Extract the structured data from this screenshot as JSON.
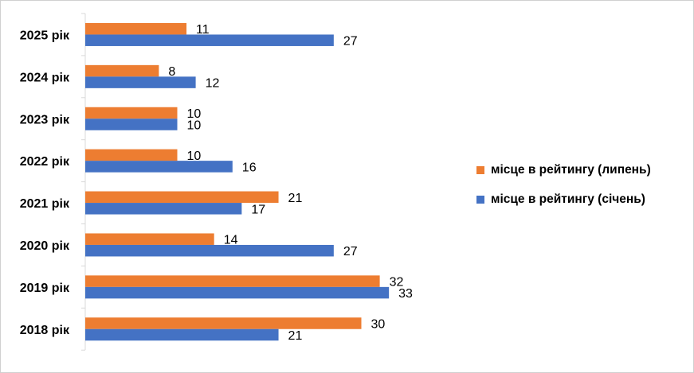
{
  "chart_data": {
    "type": "bar",
    "orientation": "horizontal",
    "categories": [
      "2025 рік",
      "2024 рік",
      "2023 рік",
      "2022 рік",
      "2021 рік",
      "2020 рік",
      "2019 рік",
      "2018 рік"
    ],
    "series": [
      {
        "name": "місце в рейтингу (липень)",
        "color": "#ED7D31",
        "values": [
          11,
          8,
          10,
          10,
          21,
          14,
          32,
          30
        ]
      },
      {
        "name": "місце в рейтингу (січень)",
        "color": "#4472C4",
        "values": [
          27,
          12,
          10,
          16,
          17,
          27,
          33,
          21
        ]
      }
    ],
    "xlim": [
      0,
      45
    ],
    "grid": false,
    "legend_position": "right"
  }
}
